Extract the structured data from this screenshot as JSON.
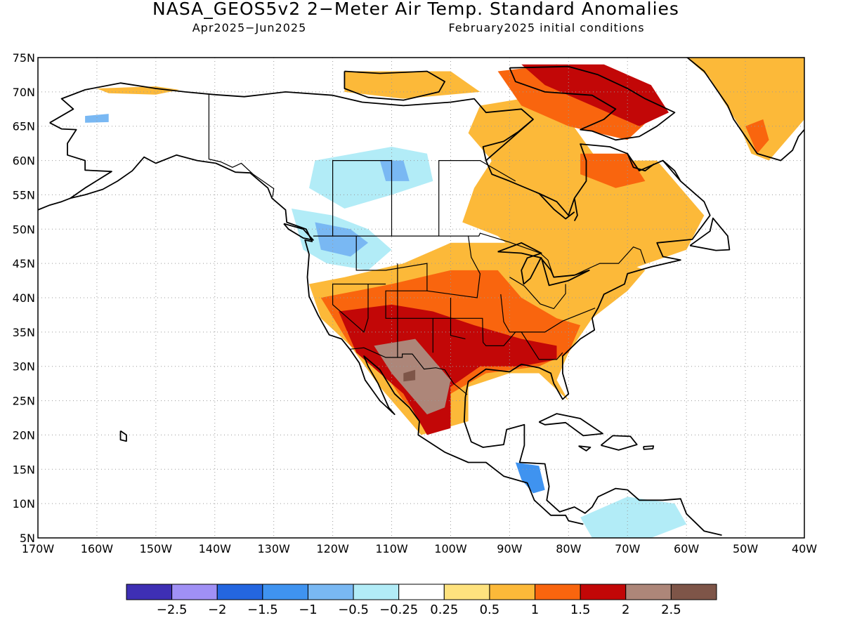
{
  "title": "NASA_GEOS5v2 2−Meter Air Temp. Standard Anomalies",
  "subtitle_left": "Apr2025−Jun2025",
  "subtitle_right": "February2025 initial conditions",
  "map": {
    "lon_range": [
      -170,
      -40
    ],
    "lat_range": [
      5,
      75
    ],
    "lat_ticks": [
      {
        "value": 75,
        "label": "75N"
      },
      {
        "value": 70,
        "label": "70N"
      },
      {
        "value": 65,
        "label": "65N"
      },
      {
        "value": 60,
        "label": "60N"
      },
      {
        "value": 55,
        "label": "55N"
      },
      {
        "value": 50,
        "label": "50N"
      },
      {
        "value": 45,
        "label": "45N"
      },
      {
        "value": 40,
        "label": "40N"
      },
      {
        "value": 35,
        "label": "35N"
      },
      {
        "value": 30,
        "label": "30N"
      },
      {
        "value": 25,
        "label": "25N"
      },
      {
        "value": 20,
        "label": "20N"
      },
      {
        "value": 15,
        "label": "15N"
      },
      {
        "value": 10,
        "label": "10N"
      },
      {
        "value": 5,
        "label": "5N"
      }
    ],
    "lon_ticks": [
      {
        "value": -170,
        "label": "170W"
      },
      {
        "value": -160,
        "label": "160W"
      },
      {
        "value": -150,
        "label": "150W"
      },
      {
        "value": -140,
        "label": "140W"
      },
      {
        "value": -130,
        "label": "130W"
      },
      {
        "value": -120,
        "label": "120W"
      },
      {
        "value": -110,
        "label": "110W"
      },
      {
        "value": -100,
        "label": "100W"
      },
      {
        "value": -90,
        "label": "90W"
      },
      {
        "value": -80,
        "label": "80W"
      },
      {
        "value": -70,
        "label": "70W"
      },
      {
        "value": -60,
        "label": "60W"
      },
      {
        "value": -50,
        "label": "50W"
      },
      {
        "value": -40,
        "label": "40W"
      }
    ],
    "grid": "dotted"
  },
  "colorbar": {
    "colors": [
      "#3e2fb4",
      "#a090f5",
      "#2466e0",
      "#3f93f0",
      "#79b8f3",
      "#b2ecf7",
      "#ffffff",
      "#fee27e",
      "#fcb939",
      "#f9650e",
      "#c20707",
      "#ad8679",
      "#7e5548"
    ],
    "labels": [
      "−2.5",
      "−2",
      "−1.5",
      "−1",
      "−0.5",
      "−0.25",
      "0.25",
      "0.5",
      "1",
      "1.5",
      "2",
      "2.5"
    ]
  },
  "anomaly_regions": [
    {
      "name": "greenland",
      "value": 1.0,
      "color": "#fcb939",
      "lonlat": [
        [
          -60,
          75
        ],
        [
          -40,
          75
        ],
        [
          -40,
          66
        ],
        [
          -43,
          63
        ],
        [
          -46,
          60
        ],
        [
          -49,
          61
        ],
        [
          -51,
          65
        ],
        [
          -54,
          69
        ],
        [
          -56,
          72
        ]
      ]
    },
    {
      "name": "greenland-east",
      "value": 1.5,
      "color": "#f9650e",
      "lonlat": [
        [
          -50,
          65
        ],
        [
          -47,
          66
        ],
        [
          -46,
          63
        ],
        [
          -48,
          61
        ]
      ]
    },
    {
      "name": "alaska-north-coast",
      "value": 0.5,
      "color": "#fcb939",
      "lonlat": [
        [
          -160,
          70.5
        ],
        [
          -150,
          70.8
        ],
        [
          -146,
          70.3
        ],
        [
          -150,
          69.6
        ],
        [
          -158,
          69.8
        ]
      ]
    },
    {
      "name": "alaska-cool",
      "value": -0.5,
      "color": "#79b8f3",
      "lonlat": [
        [
          -162,
          66.5
        ],
        [
          -158,
          66.8
        ],
        [
          -158,
          65.6
        ],
        [
          -162,
          65.5
        ]
      ]
    },
    {
      "name": "canada-west-cool",
      "value": -0.5,
      "color": "#b2ecf7",
      "lonlat": [
        [
          -123,
          60
        ],
        [
          -110,
          62
        ],
        [
          -104,
          61
        ],
        [
          -103,
          57
        ],
        [
          -110,
          55
        ],
        [
          -118,
          53
        ],
        [
          -124,
          56
        ]
      ]
    },
    {
      "name": "canada-west-cool2",
      "value": -1.0,
      "color": "#79b8f3",
      "lonlat": [
        [
          -112,
          60
        ],
        [
          -108,
          60
        ],
        [
          -107,
          57
        ],
        [
          -111,
          57
        ]
      ]
    },
    {
      "name": "pnw-cool",
      "value": -0.5,
      "color": "#b2ecf7",
      "lonlat": [
        [
          -127,
          53
        ],
        [
          -120,
          52
        ],
        [
          -114,
          50
        ],
        [
          -110,
          47
        ],
        [
          -114,
          44
        ],
        [
          -121,
          45
        ],
        [
          -125,
          47
        ]
      ]
    },
    {
      "name": "pnw-cool2",
      "value": -1.0,
      "color": "#79b8f3",
      "lonlat": [
        [
          -123,
          51
        ],
        [
          -117,
          50
        ],
        [
          -114,
          48
        ],
        [
          -117,
          46
        ],
        [
          -122,
          47
        ]
      ]
    },
    {
      "name": "canada-east-warm",
      "value": 0.5,
      "color": "#fcb939",
      "lonlat": [
        [
          -95,
          68
        ],
        [
          -88,
          69
        ],
        [
          -80,
          66
        ],
        [
          -75,
          60
        ],
        [
          -65,
          60
        ],
        [
          -57,
          52
        ],
        [
          -60,
          47
        ],
        [
          -70,
          44
        ],
        [
          -82,
          43
        ],
        [
          -88,
          46
        ],
        [
          -92,
          49
        ],
        [
          -98,
          51
        ],
        [
          -96,
          56
        ],
        [
          -93,
          60
        ],
        [
          -97,
          64
        ]
      ]
    },
    {
      "name": "canada-arctic-warm",
      "value": 0.5,
      "color": "#fcb939",
      "lonlat": [
        [
          -118,
          73
        ],
        [
          -100,
          73
        ],
        [
          -95,
          70
        ],
        [
          -108,
          69
        ],
        [
          -118,
          70
        ]
      ]
    },
    {
      "name": "hudson-bay-east",
      "value": 1.5,
      "color": "#f9650e",
      "lonlat": [
        [
          -78,
          61
        ],
        [
          -70,
          61
        ],
        [
          -67,
          57
        ],
        [
          -72,
          56
        ],
        [
          -78,
          58
        ]
      ]
    },
    {
      "name": "baffin-warm",
      "value": 1.5,
      "color": "#f9650e",
      "lonlat": [
        [
          -92,
          73
        ],
        [
          -82,
          74
        ],
        [
          -70,
          72
        ],
        [
          -65,
          67
        ],
        [
          -70,
          63
        ],
        [
          -80,
          65
        ],
        [
          -88,
          68
        ]
      ]
    },
    {
      "name": "baffin-hot",
      "value": 2.0,
      "color": "#c20707",
      "lonlat": [
        [
          -88,
          74
        ],
        [
          -74,
          74
        ],
        [
          -66,
          71
        ],
        [
          -63,
          67
        ],
        [
          -68,
          65
        ],
        [
          -76,
          68
        ],
        [
          -84,
          71
        ]
      ]
    },
    {
      "name": "us-warm",
      "value": 0.5,
      "color": "#fcb939",
      "lonlat": [
        [
          -124,
          42
        ],
        [
          -118,
          43
        ],
        [
          -108,
          45
        ],
        [
          -100,
          48
        ],
        [
          -90,
          48
        ],
        [
          -84,
          46
        ],
        [
          -76,
          44
        ],
        [
          -70,
          45
        ],
        [
          -67,
          44
        ],
        [
          -70,
          41
        ],
        [
          -76,
          37
        ],
        [
          -80,
          32
        ],
        [
          -82,
          28
        ],
        [
          -80,
          25
        ],
        [
          -85,
          29
        ],
        [
          -90,
          29
        ],
        [
          -97,
          27
        ],
        [
          -97,
          22
        ],
        [
          -105,
          20
        ],
        [
          -112,
          27
        ],
        [
          -117,
          33
        ],
        [
          -122,
          37
        ]
      ]
    },
    {
      "name": "us-central-orange",
      "value": 1.0,
      "color": "#f9650e",
      "lonlat": [
        [
          -122,
          40
        ],
        [
          -110,
          42
        ],
        [
          -100,
          44
        ],
        [
          -92,
          44
        ],
        [
          -88,
          40
        ],
        [
          -82,
          37
        ],
        [
          -78,
          36
        ],
        [
          -80,
          32
        ],
        [
          -85,
          30
        ],
        [
          -94,
          29
        ],
        [
          -100,
          26
        ],
        [
          -104,
          22
        ],
        [
          -108,
          25
        ],
        [
          -112,
          30
        ],
        [
          -117,
          33
        ]
      ]
    },
    {
      "name": "southwest-hot",
      "value": 2.0,
      "color": "#c20707",
      "lonlat": [
        [
          -119,
          38
        ],
        [
          -110,
          39
        ],
        [
          -103,
          38
        ],
        [
          -96,
          36
        ],
        [
          -88,
          34
        ],
        [
          -82,
          33
        ],
        [
          -82,
          31
        ],
        [
          -88,
          30
        ],
        [
          -95,
          30
        ],
        [
          -100,
          27
        ],
        [
          -100,
          21
        ],
        [
          -104,
          20
        ],
        [
          -108,
          26
        ],
        [
          -112,
          29
        ],
        [
          -116,
          32
        ]
      ]
    },
    {
      "name": "mexico-extreme",
      "value": 2.5,
      "color": "#ad8679",
      "lonlat": [
        [
          -113,
          33
        ],
        [
          -106,
          34
        ],
        [
          -103,
          31
        ],
        [
          -100,
          28
        ],
        [
          -101,
          24
        ],
        [
          -104,
          23
        ],
        [
          -107,
          26
        ],
        [
          -110,
          29
        ]
      ]
    },
    {
      "name": "mexico-extreme2",
      "value": 2.5,
      "color": "#7e5548",
      "lonlat": [
        [
          -108,
          29
        ],
        [
          -106,
          29.5
        ],
        [
          -106,
          28
        ],
        [
          -108,
          27.8
        ]
      ]
    },
    {
      "name": "central-america-cool",
      "value": -1.0,
      "color": "#3f93f0",
      "lonlat": [
        [
          -89,
          16
        ],
        [
          -85,
          15.5
        ],
        [
          -84,
          12
        ],
        [
          -86,
          11.5
        ],
        [
          -88,
          13.5
        ]
      ]
    },
    {
      "name": "south-america-cool",
      "value": -0.5,
      "color": "#b2ecf7",
      "lonlat": [
        [
          -78,
          8
        ],
        [
          -70,
          11
        ],
        [
          -62,
          10
        ],
        [
          -60,
          7
        ],
        [
          -66,
          5
        ],
        [
          -76,
          5
        ]
      ]
    }
  ]
}
